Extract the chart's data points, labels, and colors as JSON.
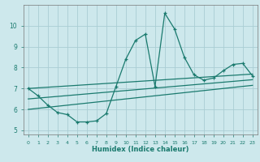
{
  "xlabel": "Humidex (Indice chaleur)",
  "ylabel": "",
  "background_color": "#cde8ec",
  "grid_color": "#aacdd4",
  "line_color": "#1a7a6e",
  "x_values": [
    0,
    1,
    2,
    3,
    4,
    5,
    6,
    7,
    8,
    9,
    10,
    11,
    12,
    13,
    14,
    15,
    16,
    17,
    18,
    19,
    20,
    21,
    22,
    23
  ],
  "main_y": [
    7.0,
    6.65,
    6.2,
    5.85,
    5.75,
    5.4,
    5.4,
    5.45,
    5.8,
    7.1,
    8.4,
    9.3,
    9.6,
    7.1,
    10.6,
    9.85,
    8.5,
    7.65,
    7.4,
    7.5,
    7.85,
    8.15,
    8.2,
    7.6
  ],
  "reg1_y": [
    7.0,
    7.03,
    7.06,
    7.09,
    7.12,
    7.15,
    7.18,
    7.21,
    7.24,
    7.27,
    7.3,
    7.33,
    7.36,
    7.39,
    7.42,
    7.45,
    7.48,
    7.51,
    7.54,
    7.57,
    7.6,
    7.63,
    7.66,
    7.69
  ],
  "reg2_y": [
    6.5,
    6.54,
    6.58,
    6.62,
    6.66,
    6.7,
    6.74,
    6.78,
    6.82,
    6.86,
    6.9,
    6.94,
    6.98,
    7.02,
    7.06,
    7.1,
    7.14,
    7.18,
    7.22,
    7.26,
    7.3,
    7.34,
    7.38,
    7.42
  ],
  "reg3_y": [
    6.0,
    6.05,
    6.1,
    6.15,
    6.2,
    6.25,
    6.3,
    6.35,
    6.4,
    6.45,
    6.5,
    6.55,
    6.6,
    6.65,
    6.7,
    6.75,
    6.8,
    6.85,
    6.9,
    6.95,
    7.0,
    7.05,
    7.1,
    7.15
  ],
  "ylim": [
    4.8,
    11.0
  ],
  "xlim": [
    -0.5,
    23.5
  ],
  "yticks": [
    5,
    6,
    7,
    8,
    9,
    10
  ],
  "xticks": [
    0,
    1,
    2,
    3,
    4,
    5,
    6,
    7,
    8,
    9,
    10,
    11,
    12,
    13,
    14,
    15,
    16,
    17,
    18,
    19,
    20,
    21,
    22,
    23
  ]
}
